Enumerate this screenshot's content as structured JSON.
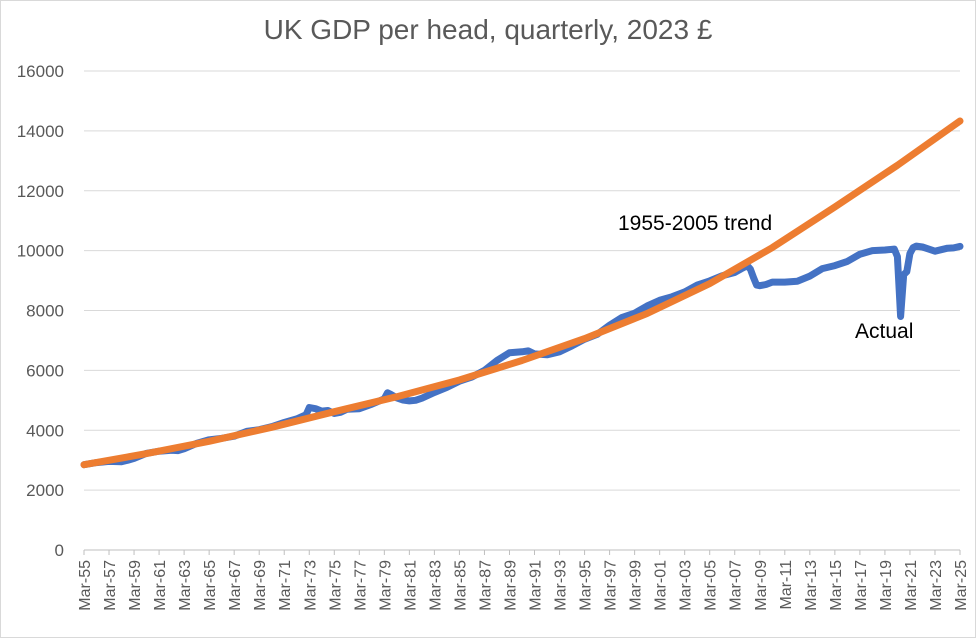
{
  "chart_data": {
    "type": "line",
    "title": "UK GDP per head, quarterly, 2023 £",
    "xlabel": "",
    "ylabel": "",
    "ylim": [
      0,
      16000
    ],
    "yticks": [
      0,
      2000,
      4000,
      6000,
      8000,
      10000,
      12000,
      14000,
      16000
    ],
    "x_range": [
      1955.0,
      2025.0
    ],
    "x_tick_labels": [
      "Mar-55",
      "Mar-57",
      "Mar-59",
      "Mar-61",
      "Mar-63",
      "Mar-65",
      "Mar-67",
      "Mar-69",
      "Mar-71",
      "Mar-73",
      "Mar-75",
      "Mar-77",
      "Mar-79",
      "Mar-81",
      "Mar-83",
      "Mar-85",
      "Mar-87",
      "Mar-89",
      "Mar-91",
      "Mar-93",
      "Mar-95",
      "Mar-97",
      "Mar-99",
      "Mar-01",
      "Mar-03",
      "Mar-05",
      "Mar-07",
      "Mar-09",
      "Mar-11",
      "Mar-13",
      "Mar-15",
      "Mar-17",
      "Mar-19",
      "Mar-21",
      "Mar-23",
      "Mar-25"
    ],
    "grid": true,
    "legend": "none",
    "colors": {
      "actual": "#4472C4",
      "trend": "#ED7D31",
      "grid": "#d9d9d9",
      "axis": "#bfbfbf",
      "text": "#595959"
    },
    "annotations": [
      {
        "text": "1955-2005 trend",
        "series": "1955-2005 trend"
      },
      {
        "text": "Actual",
        "series": "Actual"
      }
    ],
    "series": [
      {
        "name": "Actual",
        "x": [
          1955.0,
          1956.0,
          1957.0,
          1958.0,
          1958.5,
          1959.0,
          1960.0,
          1961.0,
          1962.0,
          1962.5,
          1963.0,
          1964.0,
          1965.0,
          1966.0,
          1967.0,
          1968.0,
          1969.0,
          1970.0,
          1971.0,
          1972.0,
          1972.75,
          1973.0,
          1973.5,
          1974.0,
          1974.5,
          1975.0,
          1975.5,
          1976.0,
          1977.0,
          1978.0,
          1979.0,
          1979.25,
          1979.5,
          1980.0,
          1980.5,
          1981.0,
          1981.5,
          1982.0,
          1983.0,
          1984.0,
          1985.0,
          1986.0,
          1987.0,
          1988.0,
          1989.0,
          1990.0,
          1990.5,
          1991.0,
          1992.0,
          1993.0,
          1994.0,
          1995.0,
          1996.0,
          1997.0,
          1998.0,
          1999.0,
          2000.0,
          2001.0,
          2002.0,
          2003.0,
          2004.0,
          2005.0,
          2006.0,
          2007.0,
          2007.5,
          2008.0,
          2008.25,
          2008.5,
          2008.75,
          2009.0,
          2009.5,
          2010.0,
          2011.0,
          2012.0,
          2013.0,
          2014.0,
          2015.0,
          2016.0,
          2017.0,
          2018.0,
          2019.0,
          2019.75,
          2020.0,
          2020.25,
          2020.5,
          2020.75,
          2021.0,
          2021.25,
          2021.5,
          2022.0,
          2022.5,
          2023.0,
          2023.5,
          2024.0,
          2024.5,
          2025.0
        ],
        "values": [
          2850,
          2920,
          2960,
          2950,
          3000,
          3060,
          3230,
          3300,
          3330,
          3320,
          3380,
          3560,
          3680,
          3730,
          3800,
          3960,
          4020,
          4120,
          4260,
          4380,
          4520,
          4760,
          4720,
          4640,
          4660,
          4560,
          4600,
          4700,
          4720,
          4870,
          5050,
          5250,
          5200,
          5080,
          5010,
          4980,
          5000,
          5070,
          5260,
          5430,
          5640,
          5780,
          6000,
          6330,
          6590,
          6620,
          6650,
          6550,
          6520,
          6620,
          6820,
          7040,
          7200,
          7510,
          7770,
          7910,
          8150,
          8340,
          8460,
          8620,
          8850,
          8990,
          9160,
          9270,
          9390,
          9500,
          9380,
          9100,
          8850,
          8830,
          8870,
          8950,
          8950,
          8980,
          9150,
          9400,
          9500,
          9640,
          9880,
          10000,
          10020,
          10050,
          9800,
          7800,
          9200,
          9300,
          9900,
          10100,
          10150,
          10120,
          10050,
          9980,
          10030,
          10080,
          10090,
          10140
        ]
      },
      {
        "name": "1955-2005 trend",
        "x": [
          1955,
          1960,
          1965,
          1970,
          1975,
          1980,
          1985,
          1990,
          1995,
          2000,
          2005,
          2010,
          2015,
          2020,
          2025
        ],
        "values": [
          2850,
          3220,
          3630,
          4100,
          4620,
          5120,
          5680,
          6330,
          7060,
          7900,
          8900,
          10100,
          11460,
          12850,
          14330
        ]
      }
    ]
  }
}
